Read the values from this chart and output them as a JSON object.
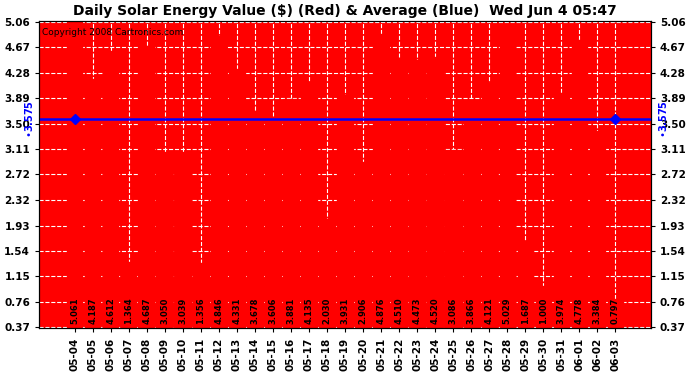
{
  "title": "Daily Solar Energy Value ($) (Red) & Average (Blue)  Wed Jun 4 05:47",
  "copyright": "Copyright 2008 Cartronics.com",
  "average": 3.575,
  "bar_color": "#ff0000",
  "avg_line_color": "#0000ff",
  "background_color": "#ffffff",
  "plot_bg_color": "#ff0000",
  "grid_color": "#cccccc",
  "categories": [
    "05-04",
    "05-05",
    "05-06",
    "05-07",
    "05-08",
    "05-09",
    "05-10",
    "05-11",
    "05-12",
    "05-13",
    "05-14",
    "05-15",
    "05-16",
    "05-17",
    "05-18",
    "05-19",
    "05-20",
    "05-21",
    "05-22",
    "05-23",
    "05-24",
    "05-25",
    "05-26",
    "05-27",
    "05-28",
    "05-29",
    "05-30",
    "05-31",
    "06-01",
    "06-02",
    "06-03"
  ],
  "values": [
    5.061,
    4.187,
    4.612,
    1.364,
    4.687,
    3.05,
    3.039,
    1.356,
    4.846,
    4.331,
    3.678,
    3.606,
    3.881,
    4.135,
    2.03,
    3.931,
    2.906,
    4.876,
    4.51,
    4.473,
    4.52,
    3.086,
    3.866,
    4.121,
    5.029,
    1.687,
    1.0,
    3.974,
    4.778,
    3.384,
    0.797
  ],
  "ylim_min": 0.37,
  "ylim_max": 5.06,
  "yticks": [
    0.37,
    0.76,
    1.15,
    1.54,
    1.93,
    2.32,
    2.72,
    3.11,
    3.5,
    3.89,
    4.28,
    4.67,
    5.06
  ],
  "title_fontsize": 10,
  "tick_fontsize": 7.5,
  "val_fontsize": 6,
  "copyright_fontsize": 6.5
}
